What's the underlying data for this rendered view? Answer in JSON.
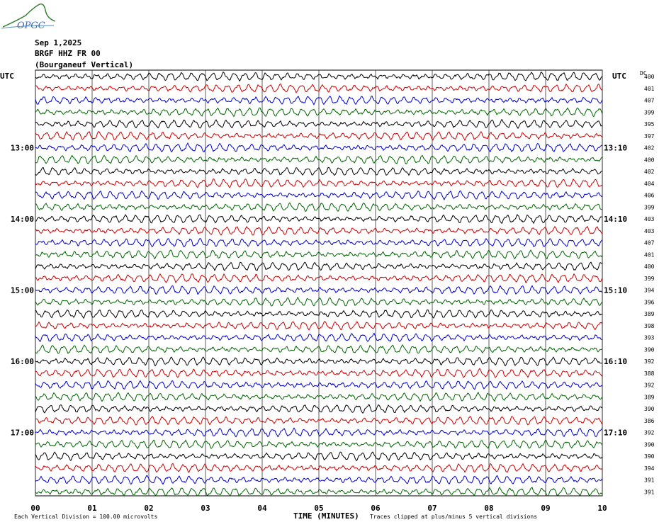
{
  "header": {
    "logo_text": "OPGC",
    "date": "Sep 1,2025",
    "station": "BRGF HHZ FR 00",
    "location": "(Bourganeuf Vertical)"
  },
  "labels": {
    "utc_left": "UTC",
    "utc_right": "UTC",
    "dc_header": "DC",
    "footer_left": "Each Vertical Division =  100.00 microvolts",
    "footer_center": "TIME (MINUTES)",
    "footer_right": "Traces clipped at plus/minus 5 vertical divisions"
  },
  "chart_data": {
    "type": "line",
    "title": "BRGF HHZ FR 00",
    "xlabel": "TIME (MINUTES)",
    "x_ticks": [
      "00",
      "01",
      "02",
      "03",
      "04",
      "05",
      "06",
      "07",
      "08",
      "09",
      "10"
    ],
    "xlim": [
      0,
      10
    ],
    "left_time_labels": [
      {
        "row": 6,
        "label": "13:00"
      },
      {
        "row": 12,
        "label": "14:00"
      },
      {
        "row": 18,
        "label": "15:00"
      },
      {
        "row": 24,
        "label": "16:00"
      },
      {
        "row": 30,
        "label": "17:00"
      }
    ],
    "right_time_labels": [
      {
        "row": 6,
        "label": "13:10"
      },
      {
        "row": 12,
        "label": "14:10"
      },
      {
        "row": 18,
        "label": "15:10"
      },
      {
        "row": 24,
        "label": "16:10"
      },
      {
        "row": 30,
        "label": "17:10"
      }
    ],
    "trace_colors": [
      "#000000",
      "#cc0000",
      "#0000cc",
      "#006600"
    ],
    "dc_offsets": [
      400,
      401,
      407,
      399,
      395,
      397,
      402,
      400,
      402,
      404,
      406,
      399,
      403,
      403,
      407,
      401,
      400,
      399,
      394,
      396,
      389,
      398,
      393,
      390,
      392,
      388,
      392,
      389,
      390,
      386,
      392,
      390,
      390,
      394,
      391,
      391
    ],
    "grid": true
  }
}
